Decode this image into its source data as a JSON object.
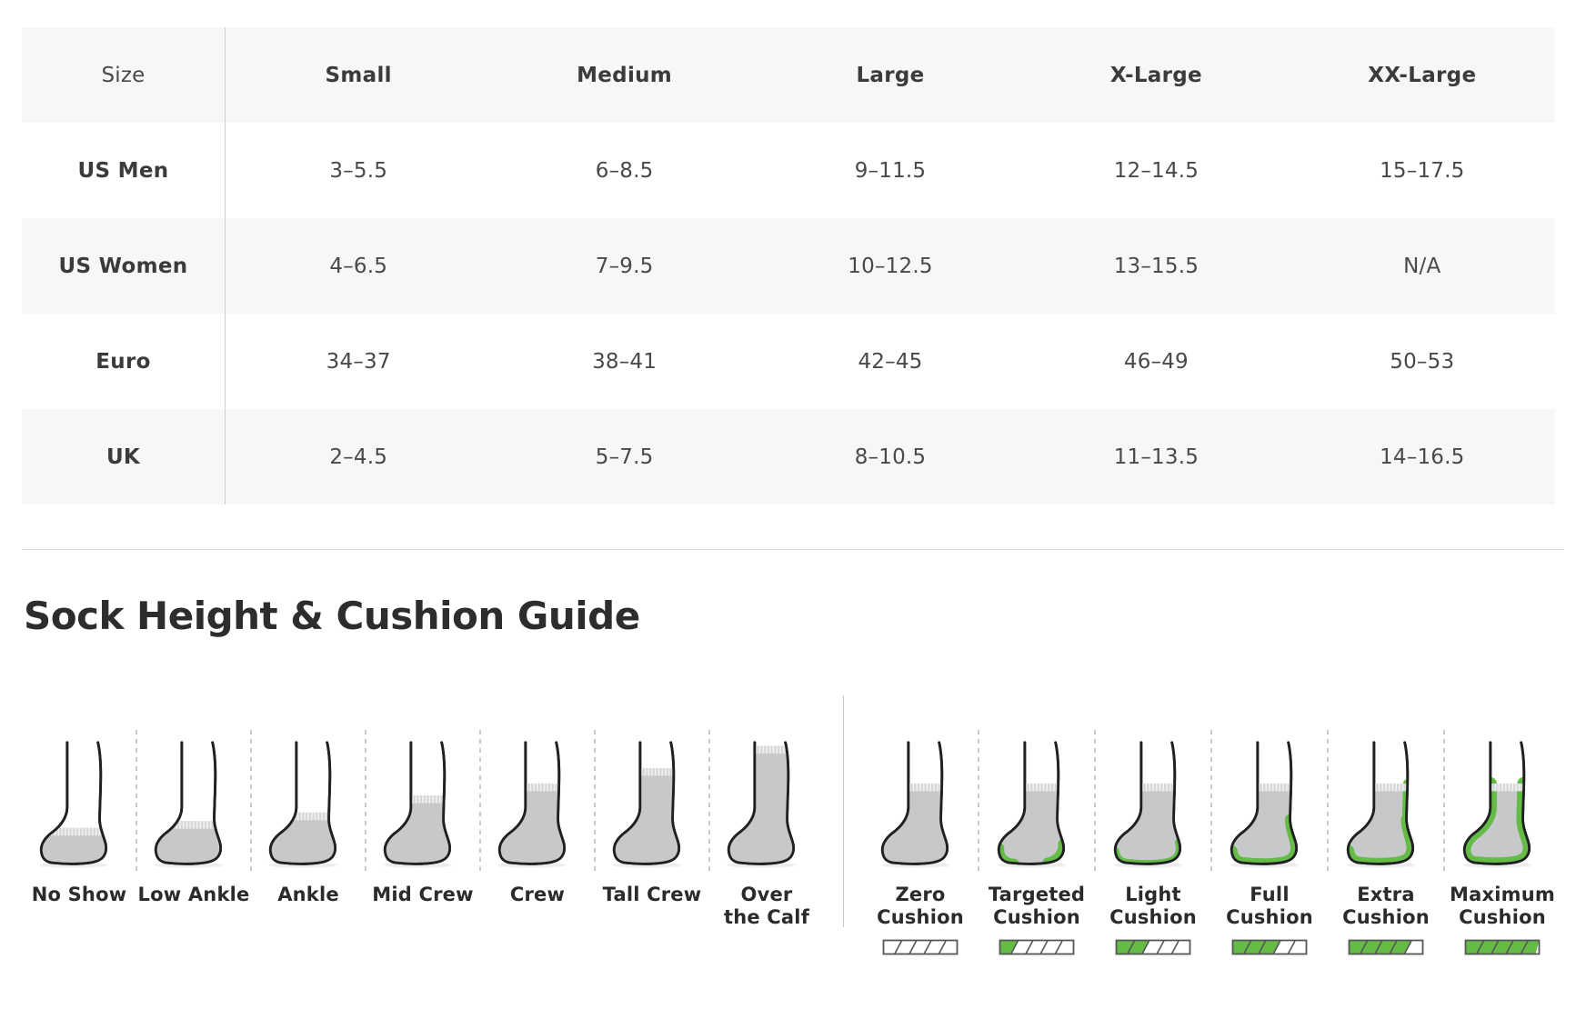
{
  "size_table": {
    "columns": [
      "Size",
      "Small",
      "Medium",
      "Large",
      "X-Large",
      "XX-Large"
    ],
    "rows": [
      {
        "label": "US Men",
        "values": [
          "3–5.5",
          "6–8.5",
          "9–11.5",
          "12–14.5",
          "15–17.5"
        ]
      },
      {
        "label": "US Women",
        "values": [
          "4–6.5",
          "7–9.5",
          "10–12.5",
          "13–15.5",
          "N/A"
        ]
      },
      {
        "label": "Euro",
        "values": [
          "34–37",
          "38–41",
          "42–45",
          "46–49",
          "50–53"
        ]
      },
      {
        "label": "UK",
        "values": [
          "2–4.5",
          "5–7.5",
          "8–10.5",
          "11–13.5",
          "14–16.5"
        ]
      }
    ]
  },
  "guide": {
    "title": "Sock Height & Cushion Guide",
    "height_items": [
      {
        "label": "No Show",
        "lines": [
          "No Show"
        ],
        "height_level": 0
      },
      {
        "label": "Low Ankle",
        "lines": [
          "Low Ankle"
        ],
        "height_level": 1
      },
      {
        "label": "Ankle",
        "lines": [
          "Ankle"
        ],
        "height_level": 2
      },
      {
        "label": "Mid Crew",
        "lines": [
          "Mid Crew"
        ],
        "height_level": 3
      },
      {
        "label": "Crew",
        "lines": [
          "Crew"
        ],
        "height_level": 4
      },
      {
        "label": "Tall Crew",
        "lines": [
          "Tall Crew"
        ],
        "height_level": 5
      },
      {
        "label": "Over the Calf",
        "lines": [
          "Over",
          "the Calf"
        ],
        "height_level": 6
      }
    ],
    "cushion_items": [
      {
        "label": "Zero Cushion",
        "lines": [
          "Zero",
          "Cushion"
        ],
        "cushion_level": 0,
        "bar_filled_segments": 0
      },
      {
        "label": "Targeted Cushion",
        "lines": [
          "Targeted",
          "Cushion"
        ],
        "cushion_level": 1,
        "bar_filled_segments": 1
      },
      {
        "label": "Light Cushion",
        "lines": [
          "Light",
          "Cushion"
        ],
        "cushion_level": 2,
        "bar_filled_segments": 2
      },
      {
        "label": "Full Cushion",
        "lines": [
          "Full",
          "Cushion"
        ],
        "cushion_level": 3,
        "bar_filled_segments": 3
      },
      {
        "label": "Extra Cushion",
        "lines": [
          "Extra",
          "Cushion"
        ],
        "cushion_level": 4,
        "bar_filled_segments": 4
      },
      {
        "label": "Maximum Cushion",
        "lines": [
          "Maximum",
          "Cushion"
        ],
        "cushion_level": 5,
        "bar_filled_segments": 5
      }
    ],
    "bar_total_segments": 5
  },
  "colors": {
    "accent_green": "#64bb46",
    "sock_gray": "#c6c8ca",
    "sock_outline": "#1f2022",
    "stripe_gray": "#f7f7f8",
    "bar_border": "#55565a"
  }
}
